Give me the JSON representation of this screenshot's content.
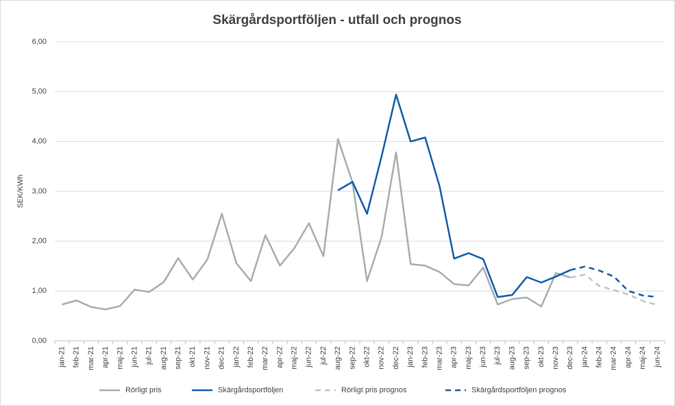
{
  "chart_data": {
    "type": "line",
    "title": "Skärgårdsportföljen - utfall och prognos",
    "y_label": "SEK/KWh",
    "categories": [
      "jan-21",
      "feb-21",
      "mar-21",
      "apr-21",
      "maj-21",
      "jun-21",
      "jul-21",
      "aug-21",
      "sep-21",
      "okt-21",
      "nov-21",
      "dec-21",
      "jan-22",
      "feb-22",
      "mar-22",
      "apr-22",
      "maj-22",
      "jun-22",
      "jul-22",
      "aug-22",
      "sep-22",
      "okt-22",
      "nov-22",
      "dec-22",
      "jan-23",
      "feb-23",
      "mar-23",
      "apr-23",
      "maj-23",
      "jun-23",
      "jul-23",
      "aug-23",
      "sep-23",
      "okt-23",
      "nov-23",
      "dec-23",
      "jan-24",
      "feb-24",
      "mar-24",
      "apr-24",
      "maj-24",
      "jun-24"
    ],
    "series": [
      {
        "name": "Rörligt pris",
        "color": "#a6abb0",
        "dashed": false,
        "values": [
          0.73,
          0.81,
          0.68,
          0.63,
          0.7,
          1.03,
          0.98,
          1.18,
          1.66,
          1.23,
          1.63,
          2.55,
          1.56,
          1.2,
          2.12,
          1.51,
          1.86,
          2.36,
          1.7,
          4.05,
          3.18,
          1.2,
          2.08,
          3.78,
          1.54,
          1.51,
          1.38,
          1.14,
          1.11,
          1.47,
          0.73,
          0.84,
          0.87,
          0.69,
          1.36,
          1.27,
          null,
          null,
          null,
          null,
          null,
          null
        ]
      },
      {
        "name": "Skärgårdsportföljen",
        "color": "#0e5aa7",
        "dashed": false,
        "values": [
          null,
          null,
          null,
          null,
          null,
          null,
          null,
          null,
          null,
          null,
          null,
          null,
          null,
          null,
          null,
          null,
          null,
          null,
          null,
          3.02,
          3.19,
          2.55,
          3.7,
          4.94,
          4.0,
          4.08,
          3.1,
          1.65,
          1.76,
          1.64,
          0.88,
          0.92,
          1.28,
          1.17,
          1.29,
          1.42,
          null,
          null,
          null,
          null,
          null,
          null
        ]
      },
      {
        "name": "Rörligt pris prognos",
        "color": "#bfc2c5",
        "dashed": true,
        "values": [
          null,
          null,
          null,
          null,
          null,
          null,
          null,
          null,
          null,
          null,
          null,
          null,
          null,
          null,
          null,
          null,
          null,
          null,
          null,
          null,
          null,
          null,
          null,
          null,
          null,
          null,
          null,
          null,
          null,
          null,
          null,
          null,
          null,
          null,
          null,
          1.27,
          1.33,
          1.1,
          1.02,
          0.93,
          0.8,
          0.72
        ]
      },
      {
        "name": "Skärgårdsportföljen prognos",
        "color": "#0e5aa7",
        "dashed": true,
        "values": [
          null,
          null,
          null,
          null,
          null,
          null,
          null,
          null,
          null,
          null,
          null,
          null,
          null,
          null,
          null,
          null,
          null,
          null,
          null,
          null,
          null,
          null,
          null,
          null,
          null,
          null,
          null,
          null,
          null,
          null,
          null,
          null,
          null,
          null,
          null,
          1.42,
          1.49,
          1.41,
          1.29,
          1.0,
          0.91,
          0.88
        ]
      }
    ],
    "ylim": [
      0,
      6
    ],
    "yticks": [
      {
        "value": 0,
        "label": "0,00"
      },
      {
        "value": 1,
        "label": "1,00"
      },
      {
        "value": 2,
        "label": "2,00"
      },
      {
        "value": 3,
        "label": "3,00"
      },
      {
        "value": 4,
        "label": "4,00"
      },
      {
        "value": 5,
        "label": "5,00"
      },
      {
        "value": 6,
        "label": "6,00"
      }
    ],
    "grid": true,
    "legend": "bottom"
  }
}
